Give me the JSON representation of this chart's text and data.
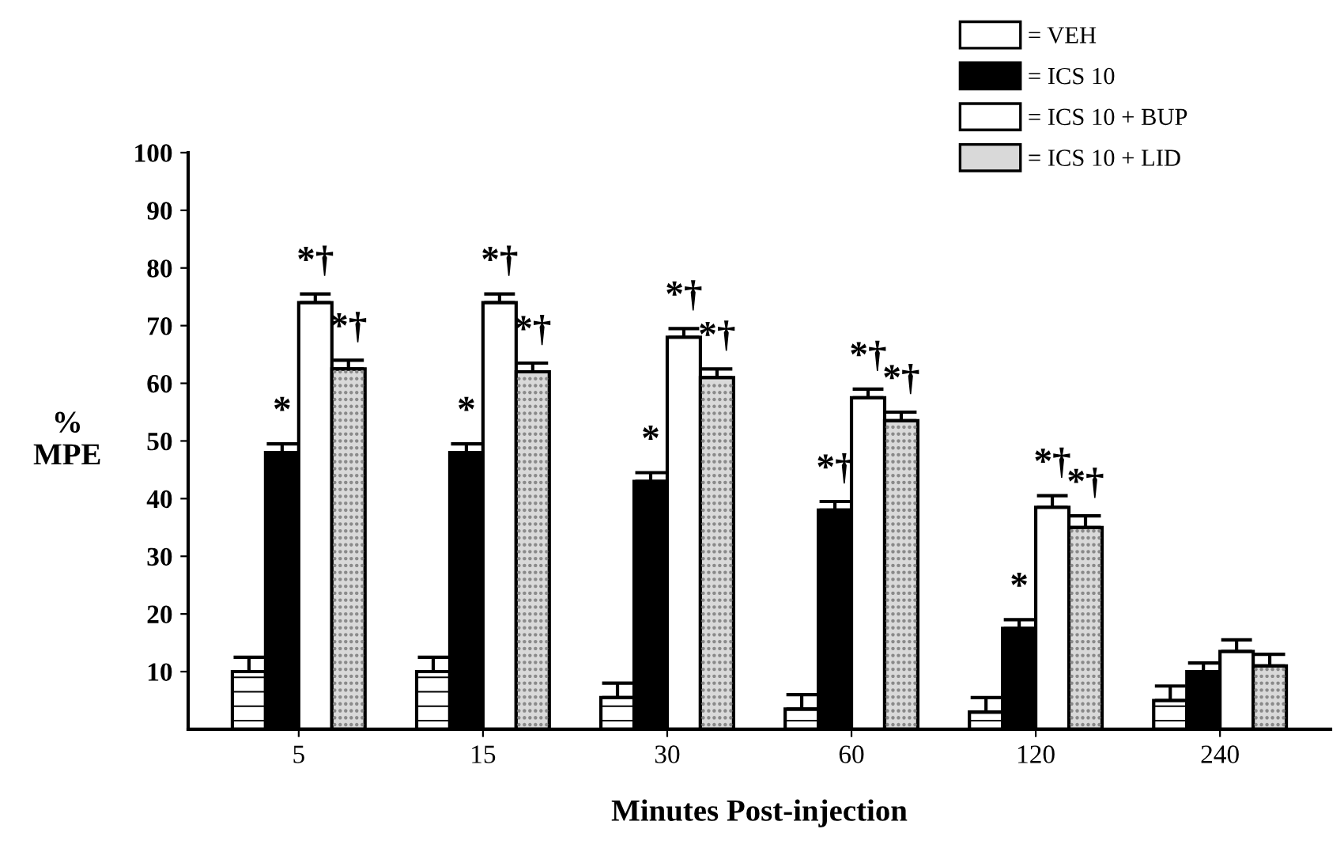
{
  "chart_data": {
    "type": "bar",
    "xlabel": "Minutes Post-injection",
    "ylabel": "%\nMPE",
    "categories": [
      "5",
      "15",
      "30",
      "60",
      "120",
      "240"
    ],
    "series": [
      {
        "name": "= VEH",
        "color": "#ffffff",
        "values": [
          10,
          10,
          5.5,
          3.5,
          3,
          5
        ],
        "errors": [
          [
            10,
            12.5
          ],
          [
            10,
            12.5
          ],
          [
            5.5,
            8
          ],
          [
            3.5,
            6
          ],
          [
            3,
            5.5
          ],
          [
            5,
            7.5
          ]
        ]
      },
      {
        "name": "= ICS 10",
        "color": "#000000",
        "values": [
          48,
          48,
          43,
          38,
          17.5,
          10
        ],
        "errors": [
          [
            48,
            49.5
          ],
          [
            48,
            49.5
          ],
          [
            43,
            44.5
          ],
          [
            38,
            39.5
          ],
          [
            17.5,
            19
          ],
          [
            10,
            11.5
          ]
        ],
        "value_labels": [
          "*",
          "*",
          "*",
          "*†",
          "*",
          null
        ]
      },
      {
        "name": "= ICS 10 + BUP",
        "color": "#ffffff",
        "values": [
          74,
          74,
          68,
          57.5,
          38.5,
          13.5
        ],
        "errors": [
          [
            74,
            75.5
          ],
          [
            74,
            75.5
          ],
          [
            68,
            69.5
          ],
          [
            57.5,
            59
          ],
          [
            38.5,
            40.5
          ],
          [
            13.5,
            15.5
          ]
        ],
        "value_labels": [
          "*†",
          "*†",
          "*†",
          "*†",
          "*†",
          null
        ]
      },
      {
        "name": "= ICS 10 + LID",
        "color": "#d9d9d9",
        "values": [
          62.5,
          62,
          61,
          53.5,
          35,
          11
        ],
        "errors": [
          [
            62.5,
            64
          ],
          [
            62,
            63.5
          ],
          [
            61,
            62.5
          ],
          [
            53.5,
            55
          ],
          [
            35,
            37
          ],
          [
            11,
            13
          ]
        ],
        "value_labels": [
          "*†",
          "*†",
          "*†",
          "*†",
          "*†",
          null
        ]
      }
    ],
    "ylim": [
      0,
      100
    ],
    "yticks": [
      10,
      20,
      30,
      40,
      50,
      60,
      70,
      80,
      90,
      100
    ],
    "grid": false,
    "legend": "top right"
  }
}
